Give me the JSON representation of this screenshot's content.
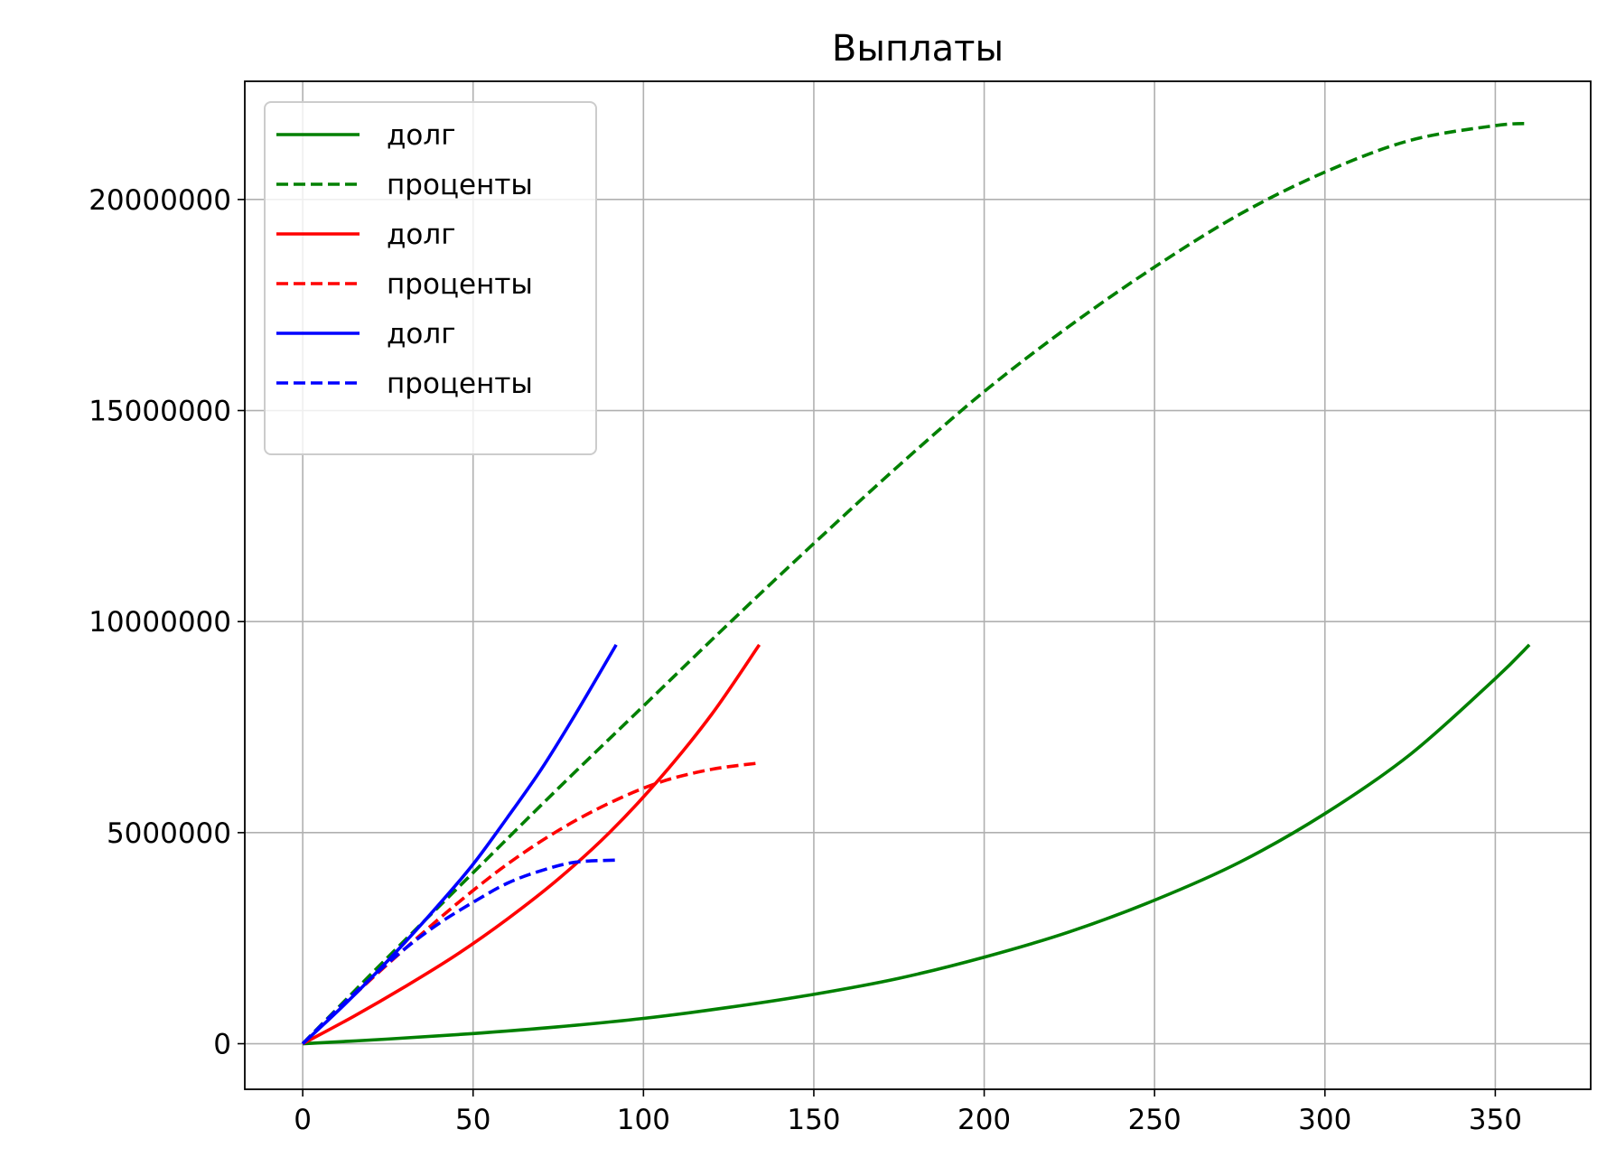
{
  "chart_data": {
    "type": "line",
    "title": "Выплаты",
    "xlabel": "",
    "ylabel": "",
    "xlim": [
      -17,
      378
    ],
    "ylim": [
      -1080000,
      22800000
    ],
    "grid": true,
    "legend_position": "upper left",
    "x_ticks": [
      {
        "value": 0,
        "label": "0"
      },
      {
        "value": 50,
        "label": "50"
      },
      {
        "value": 100,
        "label": "100"
      },
      {
        "value": 150,
        "label": "150"
      },
      {
        "value": 200,
        "label": "200"
      },
      {
        "value": 250,
        "label": "250"
      },
      {
        "value": 300,
        "label": "300"
      },
      {
        "value": 350,
        "label": "350"
      }
    ],
    "y_ticks": [
      {
        "value": 0,
        "label": "0"
      },
      {
        "value": 5000000,
        "label": "5000000"
      },
      {
        "value": 10000000,
        "label": "10000000"
      },
      {
        "value": 15000000,
        "label": "15000000"
      },
      {
        "value": 20000000,
        "label": "20000000"
      }
    ],
    "series": [
      {
        "name": "долг",
        "color": "#008000",
        "dash": "solid",
        "x": [
          0,
          25,
          50,
          75,
          100,
          125,
          150,
          175,
          200,
          225,
          250,
          275,
          300,
          325,
          350,
          360
        ],
        "y": [
          0,
          110000,
          240000,
          400000,
          600000,
          860000,
          1170000,
          1550000,
          2050000,
          2650000,
          3400000,
          4300000,
          5450000,
          6850000,
          8650000,
          9450000
        ]
      },
      {
        "name": "проценты",
        "color": "#008000",
        "dash": "dashed",
        "x": [
          0,
          25,
          50,
          75,
          100,
          125,
          150,
          175,
          200,
          225,
          250,
          275,
          300,
          325,
          350,
          360
        ],
        "y": [
          0,
          2050000,
          4050000,
          6050000,
          8000000,
          9950000,
          11850000,
          13700000,
          15450000,
          17000000,
          18400000,
          19650000,
          20650000,
          21400000,
          21750000,
          21800000
        ]
      },
      {
        "name": "долг",
        "color": "#ff0000",
        "dash": "solid",
        "x": [
          0,
          15,
          30,
          45,
          60,
          75,
          90,
          105,
          120,
          134
        ],
        "y": [
          0,
          650000,
          1350000,
          2100000,
          2950000,
          3900000,
          5000000,
          6300000,
          7800000,
          9450000
        ]
      },
      {
        "name": "проценты",
        "color": "#ff0000",
        "dash": "dashed",
        "x": [
          0,
          15,
          30,
          45,
          60,
          75,
          90,
          105,
          120,
          134
        ],
        "y": [
          0,
          1150000,
          2250000,
          3300000,
          4250000,
          5050000,
          5700000,
          6200000,
          6500000,
          6650000
        ]
      },
      {
        "name": "долг",
        "color": "#0000ff",
        "dash": "solid",
        "x": [
          0,
          10,
          20,
          30,
          40,
          50,
          60,
          70,
          80,
          92
        ],
        "y": [
          0,
          750000,
          1550000,
          2400000,
          3300000,
          4250000,
          5350000,
          6500000,
          7800000,
          9450000
        ]
      },
      {
        "name": "проценты",
        "color": "#0000ff",
        "dash": "dashed",
        "x": [
          0,
          10,
          20,
          30,
          40,
          50,
          60,
          70,
          80,
          92
        ],
        "y": [
          0,
          800000,
          1550000,
          2250000,
          2850000,
          3350000,
          3800000,
          4100000,
          4300000,
          4350000
        ]
      }
    ]
  }
}
